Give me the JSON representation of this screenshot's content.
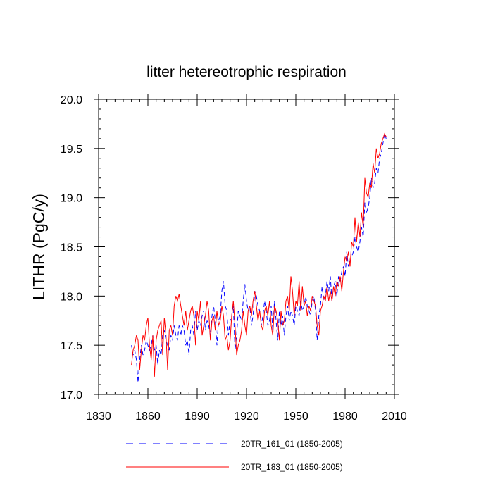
{
  "chart_data": {
    "type": "line",
    "title": "litter hetereotrophic respiration",
    "xlabel": "",
    "ylabel": "LITHR  (PgC/y)",
    "xlim": [
      1830,
      2010
    ],
    "ylim": [
      17.0,
      20.0
    ],
    "xticks": [
      1830,
      1860,
      1890,
      1920,
      1950,
      1980,
      2010
    ],
    "xtick_labels": [
      "1830",
      "1860",
      "1890",
      "1920",
      "1950",
      "1980",
      "2010"
    ],
    "yticks": [
      17.0,
      17.5,
      18.0,
      18.5,
      19.0,
      19.5,
      20.0
    ],
    "ytick_labels": [
      "17.0",
      "17.5",
      "18.0",
      "18.5",
      "19.0",
      "19.5",
      "20.0"
    ],
    "grid": false,
    "legend_position": "bottom",
    "series": [
      {
        "name": "20TR_161_01 (1850-2005)",
        "color": "#0000ff",
        "style": "dashed",
        "x": [
          1850,
          1851,
          1852,
          1853,
          1854,
          1855,
          1856,
          1857,
          1858,
          1859,
          1860,
          1861,
          1862,
          1863,
          1864,
          1865,
          1866,
          1867,
          1868,
          1869,
          1870,
          1871,
          1872,
          1873,
          1874,
          1875,
          1876,
          1877,
          1878,
          1879,
          1880,
          1881,
          1882,
          1883,
          1884,
          1885,
          1886,
          1887,
          1888,
          1889,
          1890,
          1891,
          1892,
          1893,
          1894,
          1895,
          1896,
          1897,
          1898,
          1899,
          1900,
          1901,
          1902,
          1903,
          1904,
          1905,
          1906,
          1907,
          1908,
          1909,
          1910,
          1911,
          1912,
          1913,
          1914,
          1915,
          1916,
          1917,
          1918,
          1919,
          1920,
          1921,
          1922,
          1923,
          1924,
          1925,
          1926,
          1927,
          1928,
          1929,
          1930,
          1931,
          1932,
          1933,
          1934,
          1935,
          1936,
          1937,
          1938,
          1939,
          1940,
          1941,
          1942,
          1943,
          1944,
          1945,
          1946,
          1947,
          1948,
          1949,
          1950,
          1951,
          1952,
          1953,
          1954,
          1955,
          1956,
          1957,
          1958,
          1959,
          1960,
          1961,
          1962,
          1963,
          1964,
          1965,
          1966,
          1967,
          1968,
          1969,
          1970,
          1971,
          1972,
          1973,
          1974,
          1975,
          1976,
          1977,
          1978,
          1979,
          1980,
          1981,
          1982,
          1983,
          1984,
          1985,
          1986,
          1987,
          1988,
          1989,
          1990,
          1991,
          1992,
          1993,
          1994,
          1995,
          1996,
          1997,
          1998,
          1999,
          2000,
          2001,
          2002,
          2003,
          2004,
          2005
        ],
        "values": [
          17.5,
          17.4,
          17.45,
          17.35,
          17.12,
          17.35,
          17.5,
          17.4,
          17.45,
          17.55,
          17.5,
          17.45,
          17.5,
          17.6,
          17.45,
          17.5,
          17.3,
          17.45,
          17.4,
          17.6,
          17.65,
          17.55,
          17.5,
          17.45,
          17.6,
          17.55,
          17.7,
          17.6,
          17.55,
          17.7,
          17.6,
          17.7,
          17.65,
          17.5,
          17.55,
          17.4,
          17.65,
          17.7,
          17.6,
          17.85,
          17.65,
          17.75,
          17.7,
          17.8,
          17.85,
          17.65,
          17.75,
          17.7,
          17.6,
          17.8,
          17.9,
          17.75,
          17.5,
          17.75,
          17.8,
          18.05,
          18.15,
          17.9,
          17.85,
          17.6,
          17.75,
          17.8,
          17.9,
          17.45,
          17.6,
          17.85,
          17.8,
          17.75,
          17.95,
          18.12,
          17.95,
          17.85,
          17.9,
          17.7,
          17.8,
          18.05,
          18.0,
          17.9,
          17.85,
          17.7,
          17.8,
          17.95,
          17.85,
          17.7,
          17.75,
          17.9,
          17.65,
          17.95,
          17.75,
          17.55,
          17.85,
          17.7,
          17.8,
          17.6,
          17.8,
          17.9,
          17.75,
          17.85,
          17.8,
          17.7,
          17.9,
          17.85,
          17.8,
          17.95,
          17.85,
          17.9,
          18.0,
          17.9,
          17.85,
          17.8,
          17.95,
          18.0,
          17.85,
          17.55,
          17.8,
          17.9,
          18.1,
          17.95,
          18.0,
          18.15,
          18.05,
          18.2,
          17.95,
          18.1,
          18.15,
          18.0,
          18.2,
          18.15,
          18.25,
          18.3,
          18.2,
          18.45,
          18.3,
          18.35,
          18.4,
          18.45,
          18.6,
          18.5,
          18.45,
          18.55,
          18.7,
          18.6,
          18.95,
          18.85,
          18.9,
          19.0,
          19.2,
          19.1,
          19.15,
          19.3,
          19.25,
          19.4,
          19.45,
          19.55,
          19.65,
          19.6
        ]
      },
      {
        "name": "20TR_183_01 (1850-2005)",
        "color": "#ff0000",
        "style": "solid",
        "x": [
          1850,
          1851,
          1852,
          1853,
          1854,
          1855,
          1856,
          1857,
          1858,
          1859,
          1860,
          1861,
          1862,
          1863,
          1864,
          1865,
          1866,
          1867,
          1868,
          1869,
          1870,
          1871,
          1872,
          1873,
          1874,
          1875,
          1876,
          1877,
          1878,
          1879,
          1880,
          1881,
          1882,
          1883,
          1884,
          1885,
          1886,
          1887,
          1888,
          1889,
          1890,
          1891,
          1892,
          1893,
          1894,
          1895,
          1896,
          1897,
          1898,
          1899,
          1900,
          1901,
          1902,
          1903,
          1904,
          1905,
          1906,
          1907,
          1908,
          1909,
          1910,
          1911,
          1912,
          1913,
          1914,
          1915,
          1916,
          1917,
          1918,
          1919,
          1920,
          1921,
          1922,
          1923,
          1924,
          1925,
          1926,
          1927,
          1928,
          1929,
          1930,
          1931,
          1932,
          1933,
          1934,
          1935,
          1936,
          1937,
          1938,
          1939,
          1940,
          1941,
          1942,
          1943,
          1944,
          1945,
          1946,
          1947,
          1948,
          1949,
          1950,
          1951,
          1952,
          1953,
          1954,
          1955,
          1956,
          1957,
          1958,
          1959,
          1960,
          1961,
          1962,
          1963,
          1964,
          1965,
          1966,
          1967,
          1968,
          1969,
          1970,
          1971,
          1972,
          1973,
          1974,
          1975,
          1976,
          1977,
          1978,
          1979,
          1980,
          1981,
          1982,
          1983,
          1984,
          1985,
          1986,
          1987,
          1988,
          1989,
          1990,
          1991,
          1992,
          1993,
          1994,
          1995,
          1996,
          1997,
          1998,
          1999,
          2000,
          2001,
          2002,
          2003,
          2004,
          2005
        ],
        "values": [
          17.3,
          17.45,
          17.5,
          17.6,
          17.55,
          17.25,
          17.45,
          17.6,
          17.55,
          17.7,
          17.78,
          17.5,
          17.35,
          17.6,
          17.18,
          17.55,
          17.65,
          17.7,
          17.75,
          17.4,
          17.78,
          17.6,
          17.25,
          17.65,
          17.7,
          17.6,
          17.9,
          18.0,
          17.95,
          18.02,
          17.9,
          17.8,
          17.7,
          17.85,
          17.65,
          17.75,
          17.85,
          17.9,
          17.8,
          17.5,
          17.85,
          17.75,
          17.95,
          17.6,
          17.7,
          17.8,
          17.95,
          17.85,
          17.55,
          17.75,
          17.8,
          17.65,
          17.85,
          17.7,
          17.75,
          17.9,
          17.8,
          17.55,
          17.6,
          17.45,
          17.55,
          17.8,
          17.95,
          17.7,
          17.4,
          17.5,
          17.55,
          17.65,
          17.85,
          17.7,
          17.6,
          17.85,
          17.9,
          17.8,
          17.95,
          18.05,
          17.9,
          17.75,
          17.85,
          17.7,
          17.65,
          17.85,
          17.9,
          17.8,
          17.95,
          17.7,
          17.6,
          17.9,
          17.85,
          17.75,
          17.55,
          17.85,
          17.7,
          17.75,
          17.95,
          18.0,
          17.85,
          18.2,
          18.05,
          17.8,
          17.95,
          17.9,
          18.15,
          17.85,
          18.1,
          17.9,
          17.95,
          17.8,
          17.9,
          17.85,
          18.0,
          17.95,
          17.9,
          17.7,
          17.6,
          17.85,
          17.9,
          18.0,
          17.95,
          18.1,
          17.95,
          18.05,
          17.95,
          18.1,
          18.0,
          18.15,
          18.1,
          18.2,
          18.05,
          18.25,
          18.4,
          18.35,
          18.45,
          18.3,
          18.55,
          18.5,
          18.8,
          18.55,
          18.75,
          18.6,
          18.85,
          18.7,
          19.2,
          19.05,
          19.0,
          19.15,
          19.1,
          19.35,
          19.25,
          19.5,
          19.4,
          19.45,
          19.55,
          19.6,
          19.65,
          19.62
        ]
      }
    ]
  }
}
